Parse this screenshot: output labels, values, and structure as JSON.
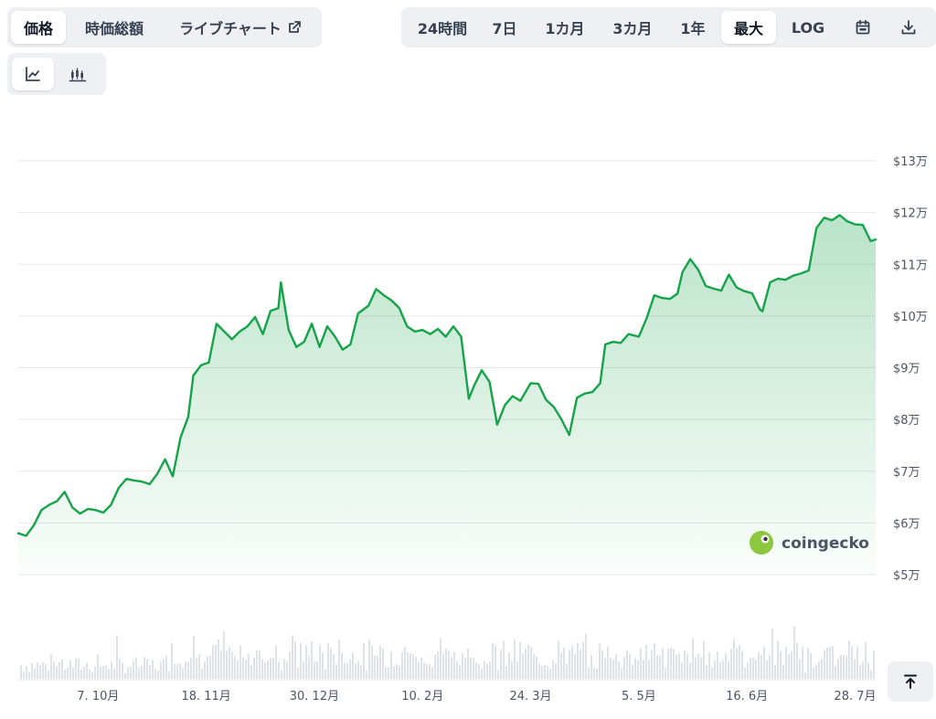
{
  "tabs_left": [
    {
      "label": "価格",
      "active": true
    },
    {
      "label": "時価総額",
      "active": false
    },
    {
      "label": "ライブチャート",
      "active": false,
      "icon": "external-link-icon"
    }
  ],
  "range_tabs": [
    {
      "label": "24時間",
      "active": false
    },
    {
      "label": "7日",
      "active": false
    },
    {
      "label": "1カ月",
      "active": false
    },
    {
      "label": "3カ月",
      "active": false
    },
    {
      "label": "1年",
      "active": false
    },
    {
      "label": "最大",
      "active": true
    },
    {
      "label": "LOG",
      "active": false
    }
  ],
  "icons": {
    "calendar": "calendar-icon",
    "download": "download-icon",
    "line": "line-chart-icon",
    "candle": "candlestick-icon",
    "scroll_top": "arrow-up-to-line-icon"
  },
  "chart_type_tabs": [
    {
      "name": "line",
      "active": true
    },
    {
      "name": "candlestick",
      "active": false
    }
  ],
  "watermark": "coingecko",
  "colors": {
    "line": "#16a34a",
    "fill_top": "#16a34a",
    "volume": "#d1d5db",
    "grid": "#e5e7eb"
  },
  "chart_data": {
    "type": "area",
    "ylim": [
      50000,
      130000
    ],
    "y_ticks": [
      {
        "value": 130000,
        "label": "$13万"
      },
      {
        "value": 120000,
        "label": "$12万"
      },
      {
        "value": 110000,
        "label": "$11万"
      },
      {
        "value": 100000,
        "label": "$10万"
      },
      {
        "value": 90000,
        "label": "$9万"
      },
      {
        "value": 80000,
        "label": "$8万"
      },
      {
        "value": 70000,
        "label": "$7万"
      },
      {
        "value": 60000,
        "label": "$6万"
      },
      {
        "value": 50000,
        "label": "$5万"
      }
    ],
    "x_ticks": [
      "7. 10月",
      "18. 11月",
      "30. 12月",
      "10. 2月",
      "24. 3月",
      "5. 5月",
      "16. 6月",
      "28. 7月"
    ],
    "x_tick_dates": [
      "2024-10-07",
      "2024-11-18",
      "2024-12-30",
      "2025-02-10",
      "2025-03-24",
      "2025-05-05",
      "2025-06-16",
      "2025-07-28"
    ],
    "series": [
      {
        "x": [
          "2024-09-06",
          "2024-09-09",
          "2024-09-12",
          "2024-09-15",
          "2024-09-18",
          "2024-09-21",
          "2024-09-24",
          "2024-09-27",
          "2024-09-30",
          "2024-10-03",
          "2024-10-06",
          "2024-10-09",
          "2024-10-12",
          "2024-10-15",
          "2024-10-18",
          "2024-10-21",
          "2024-10-24",
          "2024-10-27",
          "2024-10-30",
          "2024-11-02",
          "2024-11-05",
          "2024-11-08",
          "2024-11-11",
          "2024-11-13",
          "2024-11-16",
          "2024-11-19",
          "2024-11-22",
          "2024-11-25",
          "2024-11-28",
          "2024-12-01",
          "2024-12-04",
          "2024-12-07",
          "2024-12-10",
          "2024-12-13",
          "2024-12-16",
          "2024-12-17",
          "2024-12-20",
          "2024-12-23",
          "2024-12-26",
          "2024-12-29",
          "2025-01-01",
          "2025-01-04",
          "2025-01-07",
          "2025-01-10",
          "2025-01-13",
          "2025-01-16",
          "2025-01-20",
          "2025-01-23",
          "2025-01-26",
          "2025-01-29",
          "2025-02-01",
          "2025-02-04",
          "2025-02-07",
          "2025-02-10",
          "2025-02-13",
          "2025-02-16",
          "2025-02-19",
          "2025-02-22",
          "2025-02-25",
          "2025-02-28",
          "2025-03-02",
          "2025-03-05",
          "2025-03-08",
          "2025-03-11",
          "2025-03-14",
          "2025-03-17",
          "2025-03-20",
          "2025-03-24",
          "2025-03-27",
          "2025-03-30",
          "2025-04-02",
          "2025-04-05",
          "2025-04-08",
          "2025-04-11",
          "2025-04-14",
          "2025-04-17",
          "2025-04-20",
          "2025-04-22",
          "2025-04-25",
          "2025-04-28",
          "2025-05-01",
          "2025-05-05",
          "2025-05-08",
          "2025-05-11",
          "2025-05-14",
          "2025-05-17",
          "2025-05-20",
          "2025-05-22",
          "2025-05-25",
          "2025-05-28",
          "2025-05-31",
          "2025-06-03",
          "2025-06-06",
          "2025-06-09",
          "2025-06-12",
          "2025-06-15",
          "2025-06-18",
          "2025-06-21",
          "2025-06-22",
          "2025-06-25",
          "2025-06-28",
          "2025-07-01",
          "2025-07-04",
          "2025-07-07",
          "2025-07-10",
          "2025-07-13",
          "2025-07-16",
          "2025-07-19",
          "2025-07-22",
          "2025-07-25",
          "2025-07-28",
          "2025-07-31",
          "2025-08-03",
          "2025-08-05"
        ],
        "values": [
          58000,
          57500,
          59500,
          62500,
          63500,
          64200,
          66000,
          63000,
          61800,
          62700,
          62500,
          62000,
          63500,
          66800,
          68500,
          68200,
          68000,
          67500,
          69500,
          72300,
          69000,
          76500,
          80500,
          88500,
          90500,
          91000,
          98500,
          97000,
          95500,
          97000,
          98000,
          99800,
          96500,
          101000,
          101500,
          106500,
          97300,
          94000,
          95000,
          98500,
          94000,
          98000,
          96000,
          93500,
          94500,
          100500,
          102000,
          105200,
          104000,
          103000,
          101500,
          98000,
          97000,
          97300,
          96500,
          97500,
          96000,
          98000,
          96000,
          84000,
          86500,
          89500,
          87300,
          79000,
          82800,
          84500,
          83600,
          87000,
          86900,
          83800,
          82400,
          80000,
          77000,
          84200,
          85000,
          85300,
          87000,
          94500,
          95000,
          94800,
          96500,
          96000,
          99500,
          104000,
          103500,
          103300,
          104300,
          108500,
          111000,
          109000,
          105800,
          105300,
          104900,
          108000,
          105500,
          104800,
          104400,
          101300,
          100900,
          106500,
          107200,
          107000,
          107800,
          108200,
          108800,
          117000,
          119000,
          118500,
          119500,
          118300,
          117700,
          117600,
          114500,
          114800
        ]
      }
    ],
    "volume_note": "daily volume bars shown faintly along bottom"
  }
}
